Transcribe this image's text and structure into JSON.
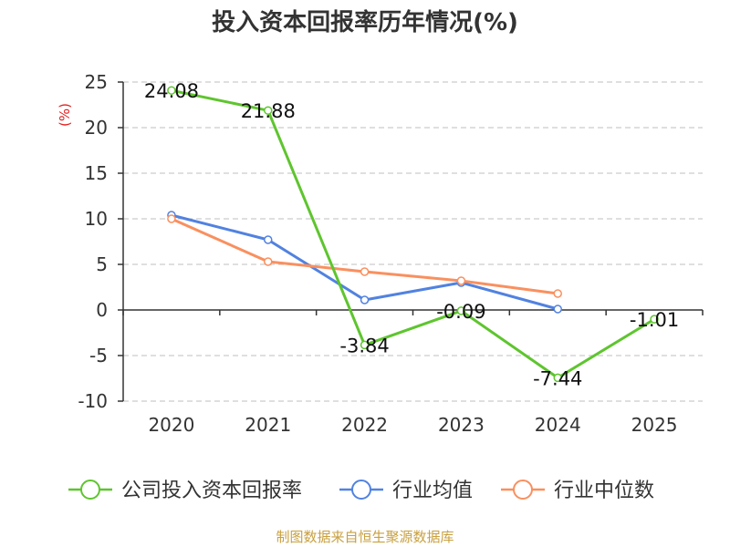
{
  "chart_data": {
    "type": "line",
    "title": "投入资本回报率历年情况(%)",
    "ylabel": "(%)",
    "xlabel": "",
    "ylim": [
      -10,
      25
    ],
    "yticks": [
      25,
      20,
      15,
      10,
      5,
      0,
      -5,
      -10
    ],
    "categories": [
      "2020",
      "2021",
      "2022",
      "2023",
      "2024",
      "2025"
    ],
    "grid": true,
    "legend_position": "bottom",
    "series": [
      {
        "name": "公司投入资本回报率",
        "color": "#5ec52e",
        "values": [
          24.08,
          21.88,
          -3.84,
          -0.09,
          -7.44,
          -1.01
        ],
        "labels": [
          "24.08",
          "21.88",
          "-3.84",
          "-0.09",
          "-7.44",
          "-1.01"
        ]
      },
      {
        "name": "行业均值",
        "color": "#5182e0",
        "values": [
          10.4,
          7.7,
          1.1,
          3.0,
          0.1,
          null
        ]
      },
      {
        "name": "行业中位数",
        "color": "#f9905f",
        "values": [
          10.0,
          5.3,
          4.2,
          3.2,
          1.8,
          null
        ]
      }
    ]
  },
  "source": "制图数据来自恒生聚源数据库"
}
